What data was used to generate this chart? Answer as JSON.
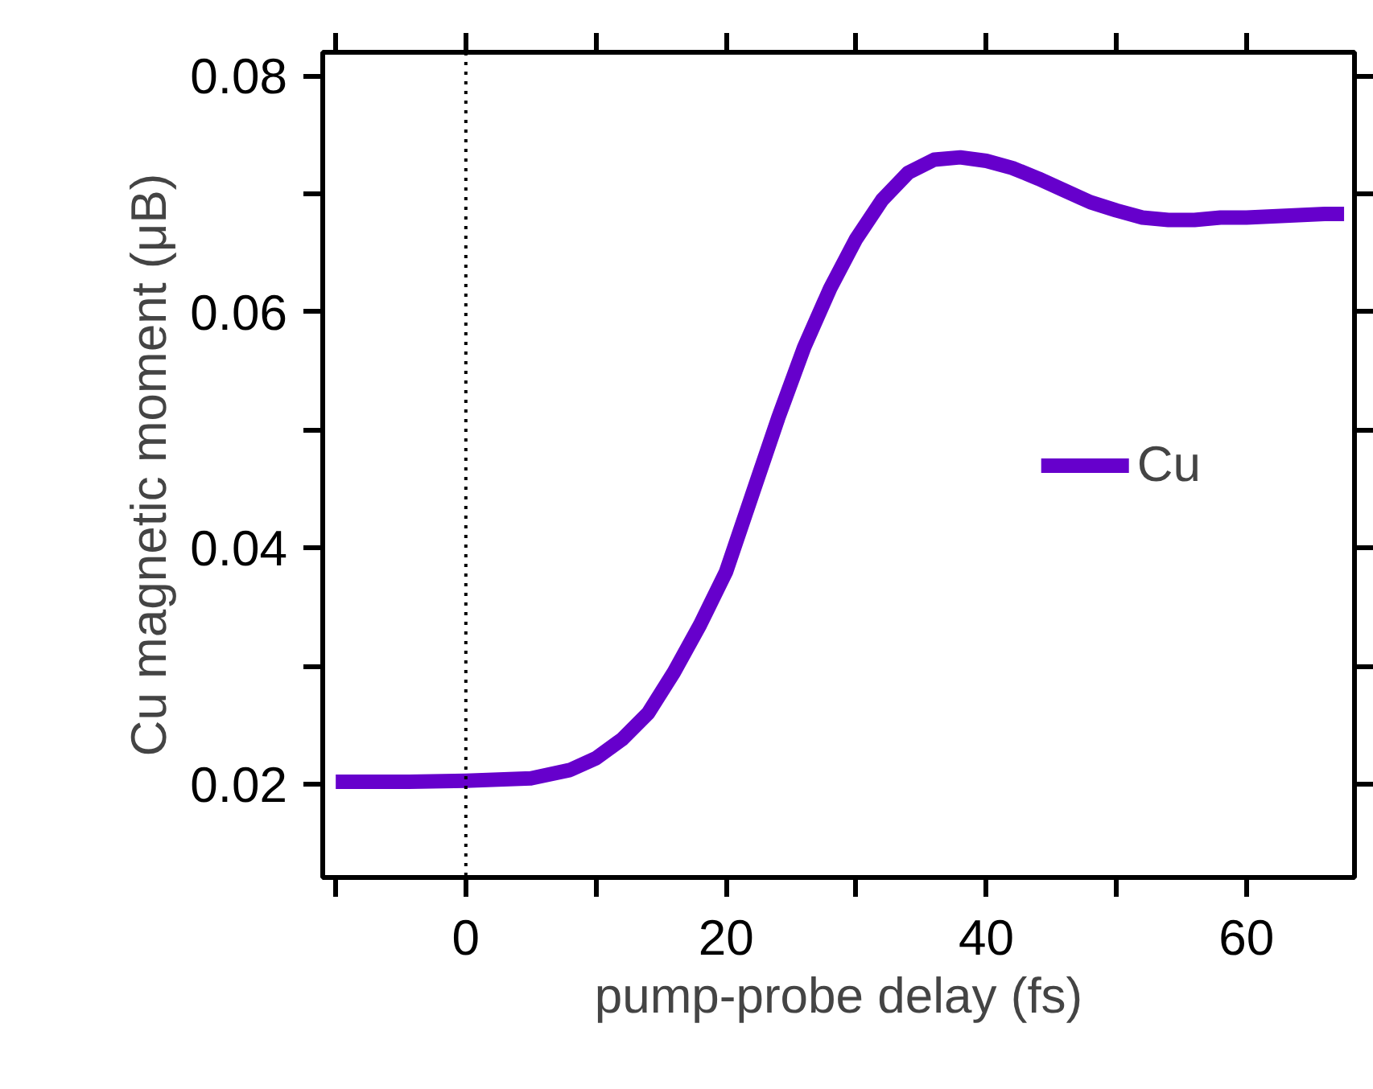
{
  "chart_data": {
    "type": "line",
    "xlabel": "pump-probe delay (fs)",
    "ylabel": "Cu magnetic moment (μB)",
    "x": [
      -10,
      -5,
      0,
      5,
      8,
      10,
      12,
      14,
      16,
      18,
      20,
      22,
      24,
      26,
      28,
      30,
      32,
      34,
      36,
      38,
      40,
      42,
      44,
      46,
      48,
      50,
      52,
      54,
      56,
      58,
      60,
      62,
      64,
      66,
      67.5
    ],
    "series": [
      {
        "name": "Cu",
        "color": "#6600cc",
        "values": [
          0.0202,
          0.0202,
          0.0203,
          0.0205,
          0.0212,
          0.0222,
          0.0238,
          0.026,
          0.0295,
          0.0335,
          0.038,
          0.0445,
          0.051,
          0.057,
          0.062,
          0.0662,
          0.0695,
          0.0718,
          0.0729,
          0.0731,
          0.0728,
          0.0722,
          0.0713,
          0.0703,
          0.0693,
          0.0686,
          0.068,
          0.0678,
          0.0678,
          0.068,
          0.068,
          0.0681,
          0.0682,
          0.0683,
          0.0683
        ]
      }
    ],
    "xlim": [
      -11,
      68.3
    ],
    "ylim": [
      0.0121,
      0.082
    ],
    "xticks": [
      {
        "value": -10,
        "label": null
      },
      0,
      {
        "value": 10,
        "label": null
      },
      20,
      {
        "value": 30,
        "label": null
      },
      40,
      {
        "value": 50,
        "label": null
      },
      60
    ],
    "yticks": [
      0.02,
      {
        "value": 0.03,
        "label": null
      },
      0.04,
      {
        "value": 0.05,
        "label": null
      },
      0.06,
      {
        "value": 0.07,
        "label": null
      },
      0.08
    ],
    "ref_lines": [
      {
        "axis": "x",
        "value": 0,
        "color": "#000000",
        "line_style": "dotted"
      }
    ],
    "legend": "right",
    "grid": false,
    "marker": "none",
    "line_style": "solid"
  }
}
